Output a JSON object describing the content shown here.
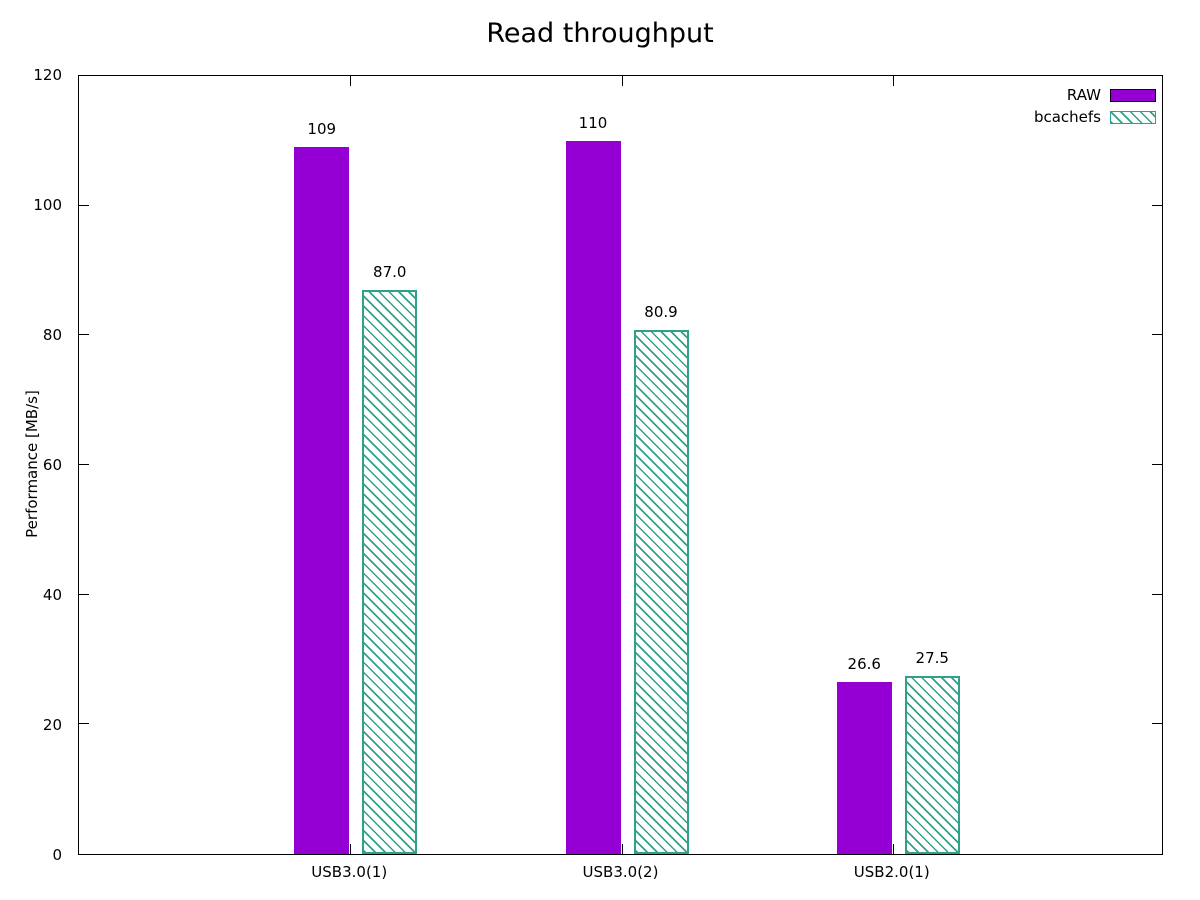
{
  "chart_data": {
    "type": "bar",
    "title": "Read throughput",
    "ylabel": "Performance [MB/s]",
    "xlabel": "",
    "categories": [
      "USB3.0(1)",
      "USB3.0(2)",
      "USB2.0(1)"
    ],
    "series": [
      {
        "name": "RAW",
        "values": [
          109,
          110,
          26.6
        ],
        "labels": [
          "109",
          "110",
          "26.6"
        ],
        "color": "#9400d3",
        "fill": "solid"
      },
      {
        "name": "bcachefs",
        "values": [
          87.0,
          80.9,
          27.5
        ],
        "labels": [
          "87.0",
          "80.9",
          "27.5"
        ],
        "color": "#30a188",
        "fill": "hatched-diagonal"
      }
    ],
    "ylim": [
      0,
      120
    ],
    "yticks": [
      0,
      20,
      40,
      60,
      80,
      100,
      120
    ],
    "grid": "off",
    "legend_position": "top-right"
  }
}
